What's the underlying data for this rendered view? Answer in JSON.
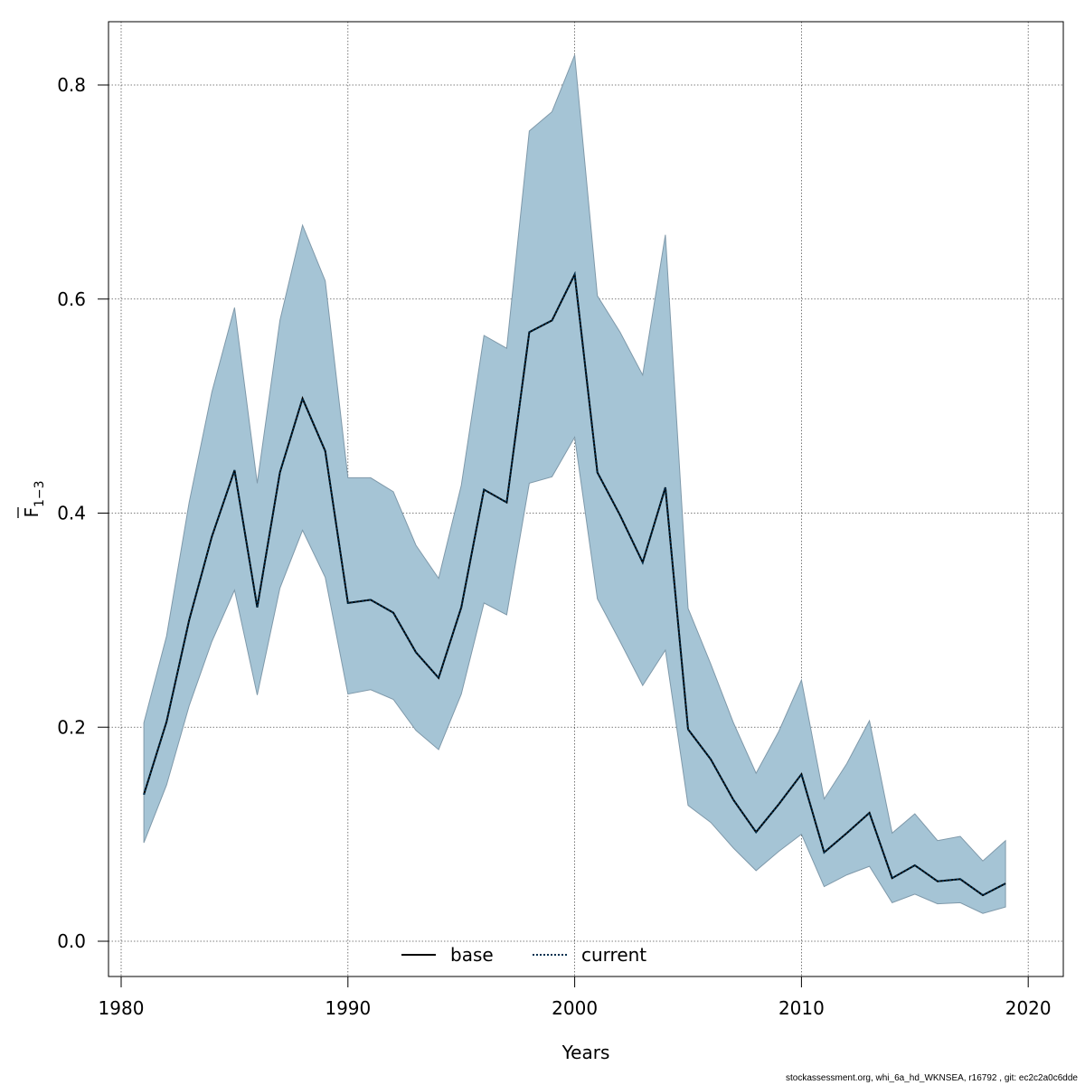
{
  "chart_data": {
    "type": "line",
    "xlabel": "Years",
    "ylabel_main": "F",
    "ylabel_sub": "1−3",
    "xlim": [
      1980,
      2020
    ],
    "ylim": [
      0.0,
      0.8
    ],
    "xticks": [
      1980,
      1990,
      2000,
      2010,
      2020
    ],
    "yticks": [
      0.0,
      0.2,
      0.4,
      0.6,
      0.8
    ],
    "yticklabels": [
      "0.0",
      "0.2",
      "0.4",
      "0.6",
      "0.8"
    ],
    "grid": true,
    "legend_position": "bottom-center",
    "legend": [
      {
        "label": "base",
        "style": "solid"
      },
      {
        "label": "current",
        "style": "dotted"
      }
    ],
    "colors": {
      "band": "#a5c4d5",
      "band_edge": "#7f99aa",
      "base": "#000000",
      "current": "#00304f"
    },
    "x": [
      1981,
      1982,
      1983,
      1984,
      1985,
      1986,
      1987,
      1988,
      1989,
      1990,
      1991,
      1992,
      1993,
      1994,
      1995,
      1996,
      1997,
      1998,
      1999,
      2000,
      2001,
      2002,
      2003,
      2004,
      2005,
      2006,
      2007,
      2008,
      2009,
      2010,
      2011,
      2012,
      2013,
      2014,
      2015,
      2016,
      2017,
      2018,
      2019
    ],
    "series": [
      {
        "name": "base",
        "values": [
          0.137,
          0.205,
          0.3,
          0.378,
          0.44,
          0.312,
          0.438,
          0.507,
          0.458,
          0.316,
          0.319,
          0.307,
          0.27,
          0.246,
          0.312,
          0.422,
          0.41,
          0.569,
          0.58,
          0.623,
          0.438,
          0.398,
          0.354,
          0.424,
          0.198,
          0.17,
          0.132,
          0.102,
          0.128,
          0.156,
          0.083,
          0.101,
          0.12,
          0.059,
          0.071,
          0.056,
          0.058,
          0.043,
          0.054
        ]
      },
      {
        "name": "current",
        "values": [
          0.137,
          0.205,
          0.3,
          0.378,
          0.44,
          0.312,
          0.438,
          0.507,
          0.458,
          0.316,
          0.319,
          0.307,
          0.27,
          0.246,
          0.312,
          0.422,
          0.41,
          0.569,
          0.58,
          0.623,
          0.438,
          0.398,
          0.354,
          0.424,
          0.198,
          0.17,
          0.132,
          0.102,
          0.128,
          0.156,
          0.083,
          0.101,
          0.12,
          0.059,
          0.071,
          0.056,
          0.058,
          0.043,
          0.054
        ]
      }
    ],
    "band": {
      "upper": [
        0.204,
        0.285,
        0.41,
        0.513,
        0.592,
        0.428,
        0.58,
        0.669,
        0.617,
        0.433,
        0.433,
        0.42,
        0.37,
        0.339,
        0.426,
        0.566,
        0.554,
        0.757,
        0.775,
        0.828,
        0.603,
        0.569,
        0.529,
        0.66,
        0.311,
        0.259,
        0.204,
        0.157,
        0.196,
        0.244,
        0.133,
        0.166,
        0.206,
        0.101,
        0.119,
        0.094,
        0.098,
        0.075,
        0.094
      ],
      "lower": [
        0.092,
        0.146,
        0.22,
        0.28,
        0.328,
        0.23,
        0.33,
        0.384,
        0.34,
        0.231,
        0.235,
        0.226,
        0.197,
        0.179,
        0.231,
        0.316,
        0.305,
        0.428,
        0.434,
        0.471,
        0.32,
        0.28,
        0.239,
        0.272,
        0.127,
        0.111,
        0.087,
        0.066,
        0.084,
        0.1,
        0.051,
        0.062,
        0.07,
        0.036,
        0.044,
        0.035,
        0.036,
        0.026,
        0.032
      ]
    }
  },
  "footer": "stockassessment.org, whi_6a_hd_WKNSEA, r16792 , git: ec2c2a0c6dde"
}
